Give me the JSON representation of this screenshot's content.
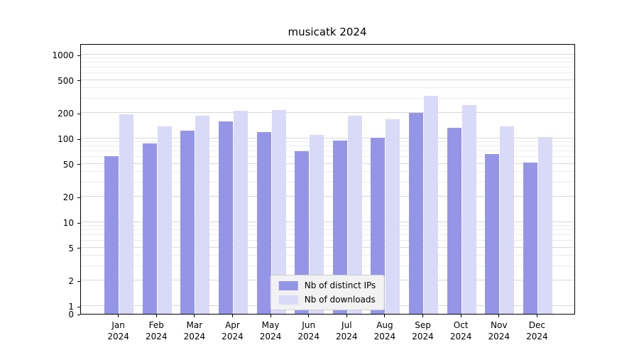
{
  "figure": {
    "title": "musicatk 2024"
  },
  "chart_data": {
    "type": "bar",
    "title": "musicatk 2024",
    "scale": "symlog",
    "grid": true,
    "categories": [
      "Jan",
      "Feb",
      "Mar",
      "Apr",
      "May",
      "Jun",
      "Jul",
      "Aug",
      "Sep",
      "Oct",
      "Nov",
      "Dec"
    ],
    "year": "2024",
    "series": [
      {
        "name": "Nb of distinct IPs",
        "color": "#9595e8",
        "values": [
          62,
          87,
          125,
          160,
          120,
          70,
          95,
          103,
          200,
          135,
          65,
          52
        ]
      },
      {
        "name": "Nb of downloads",
        "color": "#d9d9f8",
        "values": [
          195,
          140,
          185,
          215,
          220,
          110,
          185,
          170,
          320,
          250,
          140,
          105
        ]
      }
    ],
    "yticks": [
      0,
      1,
      2,
      5,
      10,
      20,
      50,
      100,
      200,
      500,
      1000
    ],
    "ylim": [
      0,
      1400
    ],
    "xlabel": "",
    "ylabel": "",
    "legend_position": "lower center"
  }
}
